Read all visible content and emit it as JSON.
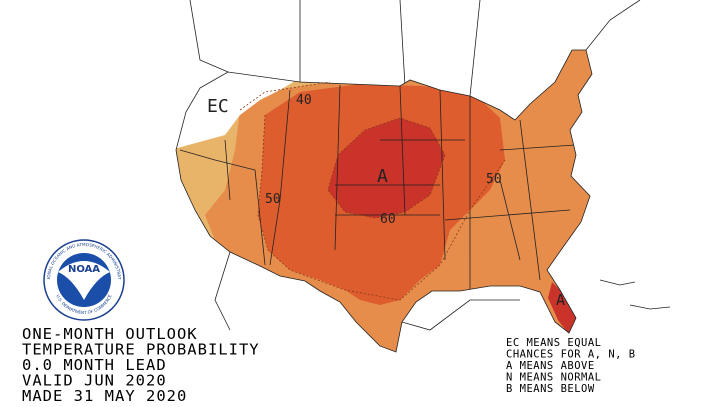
{
  "title_lines": [
    "ONE-MONTH OUTLOOK",
    "TEMPERATURE PROBABILITY",
    "0.0 MONTH LEAD",
    "VALID JUN 2020",
    "MADE 31 MAY 2020"
  ],
  "legend_lines": [
    "EC MEANS EQUAL",
    "CHANCES FOR A, N, B",
    "A MEANS ABOVE",
    "N MEANS NORMAL",
    "B MEANS BELOW"
  ],
  "map_labels": [
    "EC",
    "40",
    "50",
    "50",
    "60",
    "A",
    "A"
  ],
  "logo": {
    "text": "NOAA",
    "ring_top": "NATIONAL OCEANIC AND ATMOSPHERIC ADMINISTRATION",
    "ring_bottom": "U.S. DEPARTMENT OF COMMERCE"
  }
}
